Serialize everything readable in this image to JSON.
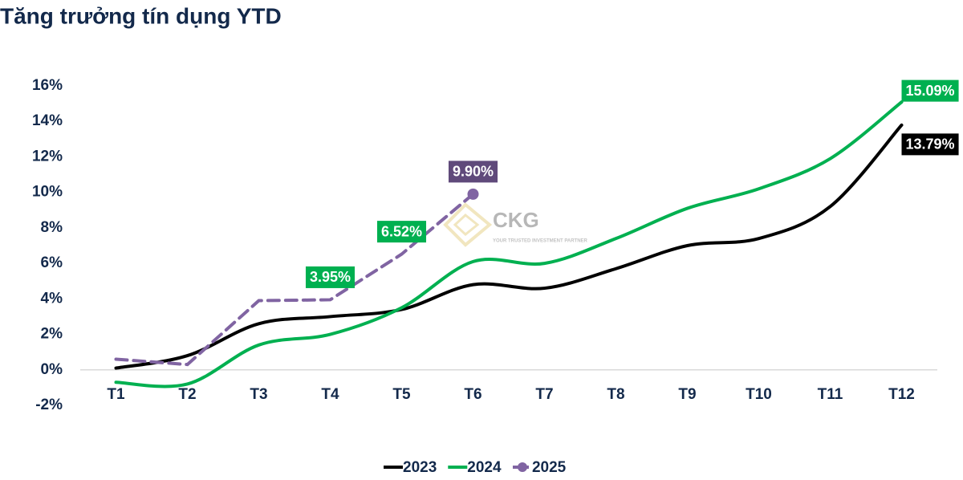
{
  "chart_data": {
    "type": "line",
    "title": "Tăng trưởng tín dụng YTD",
    "watermark": "CKG",
    "watermark_tagline": "YOUR TRUSTED INVESTMENT PARTNER",
    "categories": [
      "T1",
      "T2",
      "T3",
      "T4",
      "T5",
      "T6",
      "T7",
      "T8",
      "T9",
      "T10",
      "T11",
      "T12"
    ],
    "series": [
      {
        "name": "2023",
        "color": "#000000",
        "smooth": true,
        "dashed": false,
        "marker_last": false,
        "values": [
          0.1,
          0.8,
          2.6,
          3.0,
          3.4,
          4.8,
          4.6,
          5.7,
          7.0,
          7.4,
          9.2,
          13.79
        ],
        "value_labels": [
          null,
          null,
          null,
          null,
          null,
          null,
          null,
          null,
          null,
          null,
          null,
          "13.79%"
        ],
        "value_label_colors": [
          null,
          null,
          null,
          null,
          null,
          null,
          null,
          null,
          null,
          null,
          null,
          "#000000"
        ]
      },
      {
        "name": "2024",
        "color": "#00b050",
        "smooth": true,
        "dashed": false,
        "marker_last": false,
        "values": [
          -0.7,
          -0.8,
          1.4,
          2.0,
          3.5,
          6.1,
          6.0,
          7.4,
          9.1,
          10.2,
          11.9,
          15.09
        ],
        "value_labels": [
          null,
          null,
          null,
          null,
          null,
          null,
          null,
          null,
          null,
          null,
          null,
          "15.09%"
        ],
        "value_label_colors": [
          null,
          null,
          null,
          null,
          null,
          null,
          null,
          null,
          null,
          null,
          null,
          "#00b050"
        ]
      },
      {
        "name": "2025",
        "color": "#8064a2",
        "smooth": false,
        "dashed": true,
        "marker_last": true,
        "values": [
          0.6,
          0.3,
          3.9,
          3.95,
          6.52,
          9.9,
          null,
          null,
          null,
          null,
          null,
          null
        ],
        "value_labels": [
          null,
          null,
          null,
          "3.95%",
          "6.52%",
          "9.90%",
          null,
          null,
          null,
          null,
          null,
          null
        ],
        "value_label_colors": [
          null,
          null,
          null,
          "#00b050",
          "#00b050",
          "#604a7b",
          null,
          null,
          null,
          null,
          null,
          null
        ]
      }
    ],
    "ylim": [
      -2,
      16
    ],
    "yticks": [
      {
        "value": -2,
        "label": "-2%"
      },
      {
        "value": 0,
        "label": "0%"
      },
      {
        "value": 2,
        "label": "2%"
      },
      {
        "value": 4,
        "label": "4%"
      },
      {
        "value": 6,
        "label": "6%"
      },
      {
        "value": 8,
        "label": "8%"
      },
      {
        "value": 10,
        "label": "10%"
      },
      {
        "value": 12,
        "label": "12%"
      },
      {
        "value": 14,
        "label": "14%"
      },
      {
        "value": 16,
        "label": "16%"
      }
    ],
    "grid": false,
    "legend": "bottom"
  }
}
